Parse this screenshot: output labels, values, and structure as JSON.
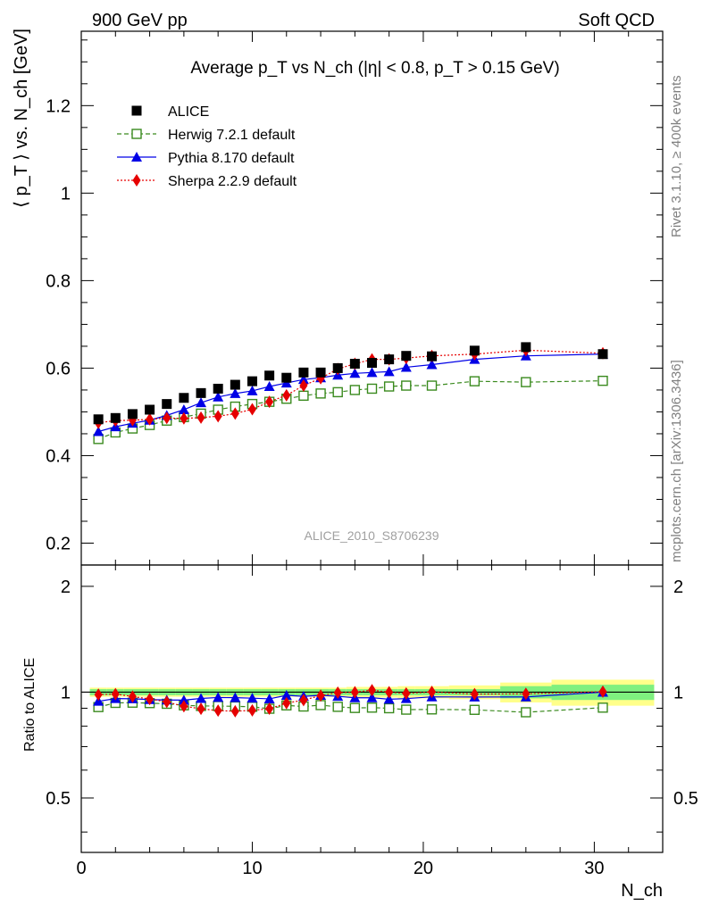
{
  "header": {
    "energy_label": "900 GeV pp",
    "category_label": "Soft QCD"
  },
  "side": {
    "rivet_label": "Rivet 3.1.10, ≥ 400k events",
    "mcplots_label": "mcplots.cern.ch [arXiv:1306.3436]"
  },
  "chart_data": {
    "type": "scatter",
    "title": "Average p_T vs N_ch (|η| < 0.8, p_T > 0.15 GeV)",
    "analysis_label": "ALICE_2010_S8706239",
    "xlabel": "N_ch",
    "ylabel": "⟨ p_T ⟩ vs. N_ch [GeV]",
    "ratio_ylabel": "Ratio to ALICE",
    "xlim": [
      0,
      34
    ],
    "ylim": [
      0.15,
      1.37
    ],
    "ratio_ylim": [
      0.35,
      2.3
    ],
    "x_ticks": [
      0,
      10,
      20,
      30
    ],
    "y_ticks": [
      0.2,
      0.4,
      0.6,
      0.8,
      1,
      1.2
    ],
    "ratio_ticks": [
      0.5,
      1,
      2
    ],
    "legend_position": "top-left",
    "x": [
      1,
      2,
      3,
      4,
      5,
      6,
      7,
      8,
      9,
      10,
      11,
      12,
      13,
      14,
      15,
      16,
      17,
      18,
      19,
      20.5,
      23,
      26,
      30.5
    ],
    "band": {
      "edges": [
        0.5,
        1.5,
        2.5,
        3.5,
        4.5,
        5.5,
        6.5,
        7.5,
        8.5,
        9.5,
        10.5,
        11.5,
        12.5,
        13.5,
        14.5,
        15.5,
        16.5,
        17.5,
        18.5,
        19.5,
        21.5,
        24.5,
        27.5,
        33.5
      ],
      "inner": [
        0.02,
        0.02,
        0.02,
        0.02,
        0.02,
        0.02,
        0.02,
        0.02,
        0.02,
        0.02,
        0.02,
        0.02,
        0.02,
        0.02,
        0.02,
        0.02,
        0.02,
        0.02,
        0.02,
        0.02,
        0.02,
        0.04,
        0.05
      ],
      "outer": [
        0.03,
        0.03,
        0.03,
        0.03,
        0.03,
        0.03,
        0.03,
        0.03,
        0.03,
        0.03,
        0.03,
        0.03,
        0.03,
        0.03,
        0.03,
        0.035,
        0.035,
        0.035,
        0.04,
        0.04,
        0.045,
        0.065,
        0.085
      ],
      "inner_color": "#7ff07f",
      "outer_color": "#ffff8a"
    },
    "series": [
      {
        "name": "ALICE",
        "marker": "square-filled",
        "color": "#000000",
        "line": "none",
        "values": [
          0.483,
          0.486,
          0.495,
          0.505,
          0.518,
          0.532,
          0.543,
          0.553,
          0.562,
          0.57,
          0.583,
          0.578,
          0.59,
          0.59,
          0.6,
          0.61,
          0.612,
          0.62,
          0.628,
          0.627,
          0.64,
          0.648,
          0.632
        ]
      },
      {
        "name": "Herwig 7.2.1 default",
        "marker": "square-open",
        "color": "#3a8a1e",
        "line": "dashed",
        "values": [
          0.438,
          0.453,
          0.462,
          0.47,
          0.48,
          0.488,
          0.496,
          0.505,
          0.512,
          0.518,
          0.523,
          0.53,
          0.537,
          0.542,
          0.545,
          0.55,
          0.553,
          0.558,
          0.56,
          0.56,
          0.57,
          0.568,
          0.571
        ]
      },
      {
        "name": "Pythia 8.170 default",
        "marker": "triangle",
        "color": "#0000e6",
        "line": "solid",
        "values": [
          0.455,
          0.466,
          0.474,
          0.481,
          0.492,
          0.505,
          0.521,
          0.534,
          0.542,
          0.548,
          0.558,
          0.566,
          0.574,
          0.578,
          0.584,
          0.588,
          0.59,
          0.592,
          0.602,
          0.608,
          0.62,
          0.628,
          0.632
        ]
      },
      {
        "name": "Sherpa 2.2.9 default",
        "marker": "diamond",
        "color": "#e60000",
        "line": "dotted",
        "values": [
          0.475,
          0.48,
          0.481,
          0.483,
          0.486,
          0.485,
          0.487,
          0.49,
          0.496,
          0.506,
          0.523,
          0.538,
          0.56,
          0.577,
          0.598,
          0.61,
          0.62,
          0.62,
          0.623,
          0.628,
          0.632,
          0.641,
          0.634
        ]
      }
    ]
  }
}
